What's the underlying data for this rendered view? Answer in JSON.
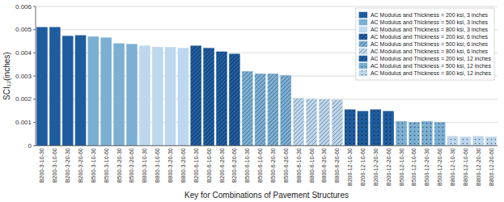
{
  "chart_data": {
    "type": "bar",
    "xlabel": "Key for Combinations of Pavement Structures",
    "ylabel": "SCI₁₂(inches)",
    "categories": [
      "B200-3-10-30",
      "B200-3-10-60",
      "B200-3-20-30",
      "B200-3-20-60",
      "B500-3-10-30",
      "B500-3-10-60",
      "B500-3-20-30",
      "B500-3-20-60",
      "B800-3-10-30",
      "B800-3-10-60",
      "B800-3-20-30",
      "B800-3-20-60",
      "B200-6-10-30",
      "B200-6-10-60",
      "B200-6-20-30",
      "B200-6-20-60",
      "B500-6-10-30",
      "B500-6-10-60",
      "B500-6-20-30",
      "B500-6-20-60",
      "B800-6-10-30",
      "B800-6-10-60",
      "B800-6-20-30",
      "B800-6-20-60",
      "B200-12-10-30",
      "B200-12-10-60",
      "B200-12-20-30",
      "B200-12-20-60",
      "B500-12-10-30",
      "B500-12-10-60",
      "B500-12-20-30",
      "B500-12-20-60",
      "B800-12-10-30",
      "B800-12-10-60",
      "B800-12-20-30",
      "B800-12-20-60"
    ],
    "series": [
      {
        "name": "AC Modulus and Thickness = 200 ksi, 3 inches",
        "color": "#1F5C9E",
        "values": [
          0.0051,
          0.0051,
          0.00472,
          0.00475,
          null,
          null,
          null,
          null,
          null,
          null,
          null,
          null,
          null,
          null,
          null,
          null,
          null,
          null,
          null,
          null,
          null,
          null,
          null,
          null,
          null,
          null,
          null,
          null,
          null,
          null,
          null,
          null,
          null,
          null,
          null,
          null
        ]
      },
      {
        "name": "AC Modulus and Thickness = 500 ksi, 3 inches",
        "color": "#7BAFD4",
        "values": [
          null,
          null,
          null,
          null,
          0.0047,
          0.00465,
          0.0044,
          0.00437,
          null,
          null,
          null,
          null,
          null,
          null,
          null,
          null,
          null,
          null,
          null,
          null,
          null,
          null,
          null,
          null,
          null,
          null,
          null,
          null,
          null,
          null,
          null,
          null,
          null,
          null,
          null,
          null
        ]
      },
      {
        "name": "AC Modulus and Thickness = 800 ksi, 3 inches",
        "color": "#BDD7EE",
        "values": [
          null,
          null,
          null,
          null,
          null,
          null,
          null,
          null,
          0.0043,
          0.00425,
          0.00424,
          0.0042,
          null,
          null,
          null,
          null,
          null,
          null,
          null,
          null,
          null,
          null,
          null,
          null,
          null,
          null,
          null,
          null,
          null,
          null,
          null,
          null,
          null,
          null,
          null,
          null
        ]
      },
      {
        "name": "AC Modulus and Thickness = 200 ksi, 6 inches",
        "color": "#1F5C9E",
        "values": [
          null,
          null,
          null,
          null,
          null,
          null,
          null,
          null,
          null,
          null,
          null,
          null,
          0.0043,
          0.0042,
          0.00405,
          0.00395,
          null,
          null,
          null,
          null,
          null,
          null,
          null,
          null,
          null,
          null,
          null,
          null,
          null,
          null,
          null,
          null,
          null,
          null,
          null,
          null
        ]
      },
      {
        "name": "AC Modulus and Thickness = 500 ksi, 6 inches",
        "color": "#7BAFD4",
        "values": [
          null,
          null,
          null,
          null,
          null,
          null,
          null,
          null,
          null,
          null,
          null,
          null,
          null,
          null,
          null,
          null,
          0.0032,
          0.0031,
          0.0031,
          0.00303,
          null,
          null,
          null,
          null,
          null,
          null,
          null,
          null,
          null,
          null,
          null,
          null,
          null,
          null,
          null,
          null
        ]
      },
      {
        "name": "AC Modulus and Thickness = 800 ksi, 6 inches",
        "color": "#BDD7EE",
        "values": [
          null,
          null,
          null,
          null,
          null,
          null,
          null,
          null,
          null,
          null,
          null,
          null,
          null,
          null,
          null,
          null,
          null,
          null,
          null,
          null,
          0.00205,
          0.00202,
          0.002,
          0.00198,
          null,
          null,
          null,
          null,
          null,
          null,
          null,
          null,
          null,
          null,
          null,
          null
        ]
      },
      {
        "name": "AC Modulus and Thickness = 200 ksi, 12 inches",
        "color": "#1F5C9E",
        "values": [
          null,
          null,
          null,
          null,
          null,
          null,
          null,
          null,
          null,
          null,
          null,
          null,
          null,
          null,
          null,
          null,
          null,
          null,
          null,
          null,
          null,
          null,
          null,
          null,
          0.00155,
          0.00148,
          0.00155,
          0.00148,
          null,
          null,
          null,
          null,
          null,
          null,
          null,
          null
        ]
      },
      {
        "name": "AC Modulus and Thickness = 500 ksi, 12 inches",
        "color": "#7BAFD4",
        "values": [
          null,
          null,
          null,
          null,
          null,
          null,
          null,
          null,
          null,
          null,
          null,
          null,
          null,
          null,
          null,
          null,
          null,
          null,
          null,
          null,
          null,
          null,
          null,
          null,
          null,
          null,
          null,
          null,
          0.00105,
          0.00101,
          0.00105,
          0.00101,
          null,
          null,
          null,
          null
        ]
      },
      {
        "name": "AC Modulus and Thickness = 800 ksi, 12 inches",
        "color": "#BDD7EE",
        "values": [
          null,
          null,
          null,
          null,
          null,
          null,
          null,
          null,
          null,
          null,
          null,
          null,
          null,
          null,
          null,
          null,
          null,
          null,
          null,
          null,
          null,
          null,
          null,
          null,
          null,
          null,
          null,
          null,
          null,
          null,
          null,
          null,
          0.0004,
          0.00038,
          0.0004,
          0.00038
        ]
      }
    ],
    "ylim": [
      0,
      0.006
    ],
    "yticks": [
      0,
      0.001,
      0.002,
      0.003,
      0.004,
      0.005,
      0.006
    ],
    "grid": true,
    "legend": "upper right"
  }
}
